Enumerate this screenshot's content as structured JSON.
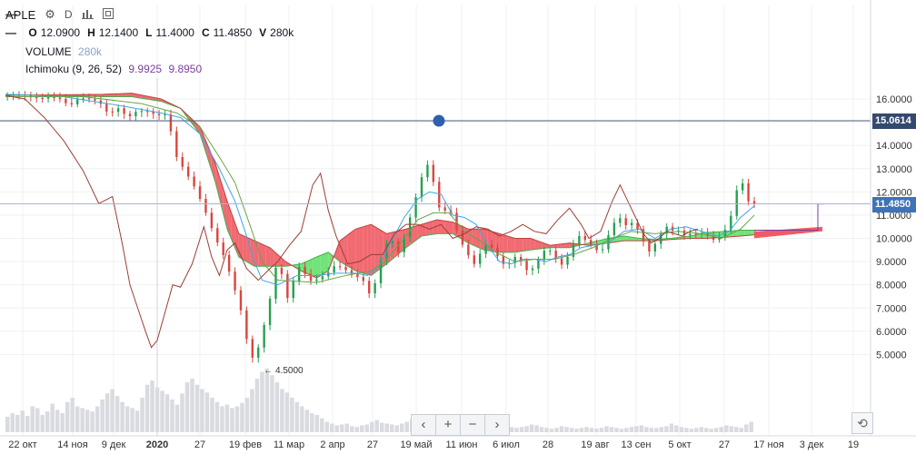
{
  "header": {
    "symbol": "APLE",
    "interval": "D",
    "ohlc": [
      {
        "key": "O",
        "value": "12.0900"
      },
      {
        "key": "H",
        "value": "12.1400"
      },
      {
        "key": "L",
        "value": "11.4000"
      },
      {
        "key": "C",
        "value": "11.4850"
      },
      {
        "key": "V",
        "value": "280k"
      }
    ],
    "volume_label": "VOLUME",
    "volume_value": "280k",
    "ichimoku_label": "Ichimoku (9, 26, 52)",
    "ichimoku_value1": "9.9925",
    "ichimoku_value2": "9.8950"
  },
  "navigation": {
    "back": "‹",
    "zoom_in": "+",
    "zoom_out": "−",
    "forward": "›",
    "reset": "⟲"
  },
  "chart_data": {
    "type": "candlestick",
    "ylim": [
      4.0,
      16.9
    ],
    "y_ticks": [
      "16.0000",
      "15.0000",
      "14.0000",
      "13.0000",
      "12.0000",
      "11.0000",
      "10.0000",
      "9.0000",
      "8.0000",
      "7.0000",
      "6.0000",
      "5.0000"
    ],
    "x_ticks": [
      "22 окт",
      "14 ноя",
      "9 дек",
      "2020",
      "27",
      "19 фев",
      "11 мар",
      "2 апр",
      "27",
      "19 май",
      "11 июн",
      "6 июл",
      "28",
      "19 авг",
      "13 сен",
      "5 окт",
      "27",
      "17 ноя",
      "3 дек",
      "19"
    ],
    "horizontal_line": {
      "value": 15.0614,
      "label": "15.0614",
      "color": "#4a5a78"
    },
    "last_price": {
      "value": 11.485,
      "label": "11.4850",
      "color": "#3f72b8"
    },
    "min_annotation": {
      "value": 4.5,
      "label": "← 4.5000"
    },
    "colors": {
      "up": "#26a04f",
      "down": "#d9463e",
      "tenkan": "#3ea6e6",
      "kijun": "#6aa447",
      "chikou": "#9c3e35",
      "cloud_bull": "#62e06a",
      "cloud_bear": "#ef5a63",
      "volume": "#d9dbe0"
    },
    "price_path": [
      [
        0,
        16.15
      ],
      [
        8,
        16.2
      ],
      [
        15,
        16.1
      ],
      [
        20,
        16.0
      ],
      [
        25,
        16.1
      ],
      [
        30,
        16.0
      ],
      [
        35,
        15.7
      ],
      [
        40,
        16.05
      ],
      [
        45,
        16.0
      ],
      [
        50,
        15.9
      ],
      [
        55,
        15.35
      ],
      [
        60,
        15.6
      ],
      [
        65,
        15.2
      ],
      [
        70,
        15.5
      ],
      [
        75,
        15.45
      ],
      [
        80,
        15.3
      ],
      [
        85,
        15.35
      ],
      [
        90,
        13.5
      ],
      [
        95,
        12.8
      ],
      [
        100,
        12.1
      ],
      [
        105,
        11.1
      ],
      [
        110,
        10.0
      ],
      [
        115,
        9.1
      ],
      [
        118,
        8.3
      ],
      [
        121,
        7.5
      ],
      [
        124,
        6.6
      ],
      [
        127,
        5.2
      ],
      [
        130,
        4.7
      ],
      [
        133,
        5.6
      ],
      [
        136,
        6.6
      ],
      [
        139,
        7.8
      ],
      [
        142,
        9.2
      ],
      [
        145,
        8.1
      ],
      [
        148,
        7.1
      ],
      [
        151,
        8.7
      ],
      [
        154,
        8.8
      ],
      [
        157,
        8.3
      ],
      [
        160,
        8.1
      ],
      [
        163,
        8.3
      ],
      [
        166,
        8.4
      ],
      [
        169,
        8.6
      ],
      [
        172,
        8.9
      ],
      [
        175,
        8.7
      ],
      [
        178,
        8.6
      ],
      [
        181,
        8.4
      ],
      [
        184,
        8.3
      ],
      [
        187,
        8.1
      ],
      [
        190,
        7.4
      ],
      [
        193,
        8.4
      ],
      [
        196,
        9.4
      ],
      [
        199,
        10.0
      ],
      [
        202,
        9.8
      ],
      [
        205,
        9.2
      ],
      [
        208,
        10.5
      ],
      [
        211,
        11.1
      ],
      [
        214,
        12.1
      ],
      [
        217,
        12.9
      ],
      [
        220,
        13.3
      ],
      [
        223,
        12.0
      ],
      [
        226,
        11.0
      ],
      [
        229,
        11.3
      ],
      [
        232,
        11.0
      ],
      [
        235,
        10.0
      ],
      [
        238,
        9.6
      ],
      [
        241,
        9.1
      ],
      [
        244,
        8.8
      ],
      [
        247,
        9.6
      ],
      [
        250,
        9.8
      ],
      [
        253,
        9.5
      ],
      [
        256,
        9.1
      ],
      [
        259,
        8.8
      ],
      [
        262,
        9.0
      ],
      [
        265,
        9.3
      ],
      [
        268,
        8.9
      ],
      [
        271,
        8.5
      ],
      [
        274,
        8.8
      ],
      [
        277,
        9.2
      ],
      [
        280,
        9.6
      ],
      [
        283,
        9.4
      ],
      [
        286,
        9.0
      ],
      [
        289,
        8.8
      ],
      [
        292,
        9.4
      ],
      [
        295,
        9.9
      ],
      [
        298,
        10.2
      ],
      [
        301,
        9.8
      ],
      [
        304,
        9.7
      ],
      [
        307,
        9.4
      ],
      [
        310,
        9.6
      ],
      [
        313,
        10.4
      ],
      [
        316,
        10.8
      ],
      [
        319,
        10.9
      ],
      [
        322,
        10.4
      ],
      [
        325,
        10.8
      ],
      [
        328,
        10.2
      ],
      [
        331,
        9.7
      ],
      [
        334,
        9.3
      ],
      [
        337,
        10.0
      ],
      [
        340,
        10.3
      ],
      [
        343,
        10.6
      ],
      [
        346,
        10.2
      ],
      [
        349,
        10.4
      ],
      [
        352,
        10.0
      ],
      [
        355,
        10.3
      ],
      [
        358,
        10.1
      ],
      [
        361,
        10.3
      ],
      [
        364,
        10.0
      ],
      [
        367,
        9.9
      ],
      [
        370,
        10.1
      ],
      [
        373,
        10.5
      ],
      [
        376,
        11.2
      ],
      [
        379,
        12.5
      ],
      [
        382,
        12.3
      ],
      [
        384,
        11.6
      ],
      [
        385,
        11.5
      ]
    ],
    "candle_stride": 3,
    "tenkan": [
      [
        0,
        16.2
      ],
      [
        30,
        16.1
      ],
      [
        60,
        15.7
      ],
      [
        80,
        15.4
      ],
      [
        90,
        15.2
      ],
      [
        100,
        14.5
      ],
      [
        110,
        13.0
      ],
      [
        118,
        11.6
      ],
      [
        124,
        10.1
      ],
      [
        128,
        9.0
      ],
      [
        132,
        8.2
      ],
      [
        140,
        8.0
      ],
      [
        150,
        8.4
      ],
      [
        160,
        8.4
      ],
      [
        170,
        8.5
      ],
      [
        180,
        8.5
      ],
      [
        186,
        8.4
      ],
      [
        192,
        8.8
      ],
      [
        198,
        9.8
      ],
      [
        205,
        10.9
      ],
      [
        212,
        11.7
      ],
      [
        218,
        12.0
      ],
      [
        224,
        11.9
      ],
      [
        230,
        11.0
      ],
      [
        236,
        10.9
      ],
      [
        242,
        10.6
      ],
      [
        248,
        9.7
      ],
      [
        254,
        9.0
      ],
      [
        260,
        8.9
      ],
      [
        266,
        9.1
      ],
      [
        272,
        9.1
      ],
      [
        278,
        9.0
      ],
      [
        284,
        9.2
      ],
      [
        290,
        9.3
      ],
      [
        296,
        9.6
      ],
      [
        302,
        9.7
      ],
      [
        310,
        9.8
      ],
      [
        318,
        10.3
      ],
      [
        326,
        10.4
      ],
      [
        334,
        10.0
      ],
      [
        342,
        10.4
      ],
      [
        350,
        10.5
      ],
      [
        358,
        10.3
      ],
      [
        366,
        10.1
      ],
      [
        372,
        10.3
      ],
      [
        378,
        10.9
      ],
      [
        385,
        11.4
      ]
    ],
    "kijun": [
      [
        0,
        16.1
      ],
      [
        40,
        16.1
      ],
      [
        70,
        15.8
      ],
      [
        88,
        15.4
      ],
      [
        100,
        14.8
      ],
      [
        110,
        13.5
      ],
      [
        118,
        12.4
      ],
      [
        126,
        10.5
      ],
      [
        132,
        9.0
      ],
      [
        140,
        8.2
      ],
      [
        160,
        8.1
      ],
      [
        175,
        8.4
      ],
      [
        188,
        8.6
      ],
      [
        195,
        9.0
      ],
      [
        205,
        10.0
      ],
      [
        212,
        10.8
      ],
      [
        220,
        11.1
      ],
      [
        228,
        11.1
      ],
      [
        236,
        10.3
      ],
      [
        244,
        9.9
      ],
      [
        252,
        9.4
      ],
      [
        262,
        9.0
      ],
      [
        272,
        9.1
      ],
      [
        282,
        9.1
      ],
      [
        292,
        9.3
      ],
      [
        302,
        9.6
      ],
      [
        312,
        10.0
      ],
      [
        322,
        10.3
      ],
      [
        334,
        10.2
      ],
      [
        346,
        10.3
      ],
      [
        358,
        10.2
      ],
      [
        368,
        10.0
      ],
      [
        378,
        10.4
      ],
      [
        385,
        11.0
      ]
    ],
    "chikou": [
      [
        0,
        16.15
      ],
      [
        10,
        16.0
      ],
      [
        20,
        15.2
      ],
      [
        30,
        14.2
      ],
      [
        40,
        12.9
      ],
      [
        48,
        11.5
      ],
      [
        55,
        11.8
      ],
      [
        60,
        9.8
      ],
      [
        64,
        8.0
      ],
      [
        68,
        7.0
      ],
      [
        72,
        6.0
      ],
      [
        75,
        5.3
      ],
      [
        78,
        5.6
      ],
      [
        82,
        6.8
      ],
      [
        86,
        8.0
      ],
      [
        90,
        7.9
      ],
      [
        96,
        8.9
      ],
      [
        102,
        10.5
      ],
      [
        106,
        9.2
      ],
      [
        110,
        8.4
      ],
      [
        114,
        9.5
      ],
      [
        118,
        9.8
      ],
      [
        124,
        8.7
      ],
      [
        130,
        8.2
      ],
      [
        136,
        8.7
      ],
      [
        140,
        9.0
      ],
      [
        146,
        9.7
      ],
      [
        152,
        10.3
      ],
      [
        158,
        12.3
      ],
      [
        162,
        12.8
      ],
      [
        166,
        11.2
      ],
      [
        170,
        10.1
      ],
      [
        176,
        8.9
      ],
      [
        182,
        9.0
      ],
      [
        188,
        9.3
      ],
      [
        194,
        9.3
      ],
      [
        200,
        10.2
      ],
      [
        206,
        10.6
      ],
      [
        212,
        10.6
      ],
      [
        218,
        10.4
      ],
      [
        224,
        10.6
      ],
      [
        230,
        10.0
      ],
      [
        236,
        10.2
      ],
      [
        242,
        10.5
      ],
      [
        248,
        10.4
      ],
      [
        254,
        10.1
      ],
      [
        260,
        10.3
      ],
      [
        266,
        10.6
      ],
      [
        272,
        10.3
      ],
      [
        278,
        10.2
      ],
      [
        284,
        10.8
      ],
      [
        290,
        11.3
      ],
      [
        296,
        10.6
      ],
      [
        300,
        10.0
      ],
      [
        306,
        10.3
      ],
      [
        312,
        11.6
      ],
      [
        316,
        12.3
      ],
      [
        320,
        11.6
      ],
      [
        324,
        10.9
      ],
      [
        328,
        10.2
      ],
      [
        332,
        9.8
      ],
      [
        336,
        10.0
      ],
      [
        340,
        10.3
      ],
      [
        344,
        10.2
      ],
      [
        348,
        10.1
      ],
      [
        352,
        10.3
      ],
      [
        356,
        10.4
      ]
    ],
    "span_a": [
      [
        0,
        16.2
      ],
      [
        50,
        16.1
      ],
      [
        65,
        16.1
      ],
      [
        80,
        15.9
      ],
      [
        90,
        15.6
      ],
      [
        100,
        14.5
      ],
      [
        108,
        12.4
      ],
      [
        114,
        10.4
      ],
      [
        120,
        9.2
      ],
      [
        128,
        8.8
      ],
      [
        136,
        8.8
      ],
      [
        144,
        8.8
      ],
      [
        152,
        8.9
      ],
      [
        160,
        9.2
      ],
      [
        166,
        9.4
      ],
      [
        172,
        9.0
      ],
      [
        180,
        8.6
      ],
      [
        188,
        8.4
      ],
      [
        196,
        8.9
      ],
      [
        206,
        9.6
      ],
      [
        214,
        10.1
      ],
      [
        222,
        10.2
      ],
      [
        230,
        10.2
      ],
      [
        238,
        9.8
      ],
      [
        246,
        9.5
      ],
      [
        254,
        9.4
      ],
      [
        262,
        9.4
      ],
      [
        270,
        9.5
      ],
      [
        280,
        9.6
      ],
      [
        290,
        9.6
      ],
      [
        300,
        9.8
      ],
      [
        310,
        10.0
      ],
      [
        318,
        10.1
      ],
      [
        326,
        10.0
      ],
      [
        334,
        9.95
      ],
      [
        342,
        10.0
      ],
      [
        352,
        10.1
      ],
      [
        360,
        10.25
      ],
      [
        370,
        10.3
      ],
      [
        378,
        10.35
      ],
      [
        385,
        10.35
      ]
    ],
    "span_b": [
      [
        0,
        16.15
      ],
      [
        50,
        16.2
      ],
      [
        65,
        16.25
      ],
      [
        80,
        16.0
      ],
      [
        90,
        15.6
      ],
      [
        100,
        14.8
      ],
      [
        108,
        13.2
      ],
      [
        114,
        11.6
      ],
      [
        120,
        10.2
      ],
      [
        128,
        9.9
      ],
      [
        136,
        9.6
      ],
      [
        144,
        9.0
      ],
      [
        152,
        8.6
      ],
      [
        160,
        8.3
      ],
      [
        166,
        8.6
      ],
      [
        172,
        9.9
      ],
      [
        180,
        10.4
      ],
      [
        188,
        10.6
      ],
      [
        196,
        10.2
      ],
      [
        206,
        10.4
      ],
      [
        214,
        10.6
      ],
      [
        222,
        10.8
      ],
      [
        230,
        10.7
      ],
      [
        238,
        10.4
      ],
      [
        246,
        10.4
      ],
      [
        254,
        10.2
      ],
      [
        262,
        10.0
      ],
      [
        270,
        10.0
      ],
      [
        280,
        9.7
      ],
      [
        290,
        9.8
      ],
      [
        300,
        9.7
      ],
      [
        310,
        9.8
      ],
      [
        318,
        9.9
      ],
      [
        326,
        9.9
      ],
      [
        334,
        9.9
      ],
      [
        342,
        9.95
      ],
      [
        352,
        10.0
      ],
      [
        360,
        10.0
      ],
      [
        370,
        10.05
      ],
      [
        378,
        10.1
      ],
      [
        385,
        10.15
      ]
    ],
    "volume_bars": [
      0.18,
      0.22,
      0.2,
      0.25,
      0.19,
      0.3,
      0.28,
      0.2,
      0.24,
      0.33,
      0.26,
      0.22,
      0.35,
      0.4,
      0.3,
      0.28,
      0.26,
      0.24,
      0.3,
      0.38,
      0.45,
      0.5,
      0.42,
      0.35,
      0.3,
      0.28,
      0.25,
      0.4,
      0.55,
      0.6,
      0.52,
      0.48,
      0.44,
      0.38,
      0.32,
      0.45,
      0.58,
      0.62,
      0.55,
      0.5,
      0.46,
      0.4,
      0.35,
      0.3,
      0.32,
      0.28,
      0.3,
      0.34,
      0.4,
      0.5,
      0.62,
      0.7,
      0.74,
      0.66,
      0.58,
      0.5,
      0.46,
      0.4,
      0.35,
      0.3,
      0.26,
      0.22,
      0.2,
      0.16,
      0.12,
      0.1,
      0.08,
      0.09,
      0.1,
      0.07,
      0.06,
      0.08,
      0.09,
      0.12,
      0.14,
      0.11,
      0.1,
      0.09,
      0.08,
      0.1,
      0.12,
      0.15,
      0.13,
      0.1,
      0.08,
      0.07,
      0.09,
      0.1,
      0.08,
      0.07,
      0.06,
      0.08,
      0.1,
      0.12,
      0.09,
      0.07,
      0.06,
      0.05,
      0.06,
      0.08,
      0.07,
      0.06,
      0.05,
      0.06,
      0.07,
      0.09,
      0.08,
      0.06,
      0.05,
      0.04,
      0.05,
      0.07,
      0.06,
      0.05,
      0.04,
      0.05,
      0.06,
      0.05,
      0.04,
      0.05,
      0.07,
      0.06,
      0.05,
      0.04,
      0.05,
      0.06,
      0.07,
      0.08,
      0.06,
      0.05,
      0.05,
      0.06,
      0.07,
      0.1,
      0.08,
      0.06,
      0.05,
      0.04,
      0.05,
      0.06,
      0.05,
      0.04,
      0.05,
      0.06,
      0.08,
      0.07,
      0.06,
      0.05,
      0.09,
      0.12
    ]
  }
}
